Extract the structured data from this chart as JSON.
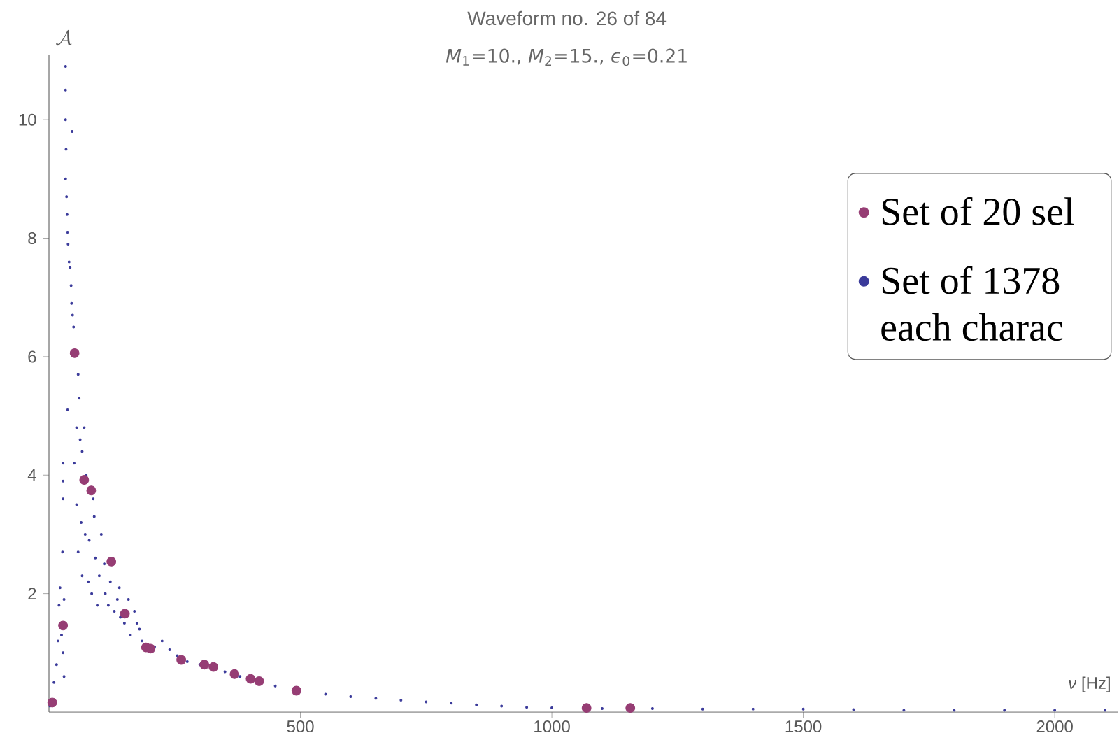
{
  "chart_data": {
    "type": "scatter",
    "title": "Waveform no. 26 of 84",
    "subtitle": "*M*$_{1}$=10., *M*$_{2}$=15., *ϵ*$_{0}$=0.21",
    "xlabel": "*ν* [Hz]",
    "ylabel": "\\mathcal{A}",
    "xlim": [
      0,
      2125
    ],
    "ylim": [
      0,
      11.1
    ],
    "xticks": [
      500,
      1000,
      1500,
      2000
    ],
    "yticks": [
      2,
      4,
      6,
      8,
      10
    ],
    "grid": false,
    "legend": "right",
    "marker": "circle",
    "series": [
      {
        "name": "Set of 20 sel",
        "color": "#963d74",
        "x": [
          6.5,
          28,
          51,
          70,
          84,
          124,
          151,
          193,
          202,
          263,
          309,
          327,
          369,
          401,
          418,
          492,
          1069,
          1156
        ],
        "values": [
          0.16,
          1.46,
          6.06,
          3.92,
          3.74,
          2.54,
          1.66,
          1.09,
          1.07,
          0.88,
          0.8,
          0.76,
          0.64,
          0.56,
          0.52,
          0.36,
          0.07,
          0.07
        ]
      },
      {
        "name": "Set of 1378 each charac",
        "color": "#3a3a9a",
        "x": [
          2,
          10,
          15,
          18,
          20,
          22,
          25,
          28,
          30,
          30,
          27,
          28,
          28,
          28,
          33,
          33,
          33,
          34,
          33,
          35,
          36,
          37,
          38,
          40,
          42,
          44,
          45,
          47,
          49,
          46,
          37,
          58,
          60,
          55,
          62,
          50,
          66,
          70,
          74,
          55,
          64,
          72,
          58,
          66,
          78,
          80,
          88,
          90,
          92,
          85,
          96,
          100,
          104,
          110,
          112,
          118,
          122,
          130,
          136,
          140,
          142,
          150,
          158,
          162,
          170,
          175,
          180,
          185,
          210,
          225,
          240,
          255,
          275,
          300,
          350,
          380,
          450,
          550,
          600,
          650,
          700,
          750,
          800,
          850,
          900,
          950,
          1000,
          1100,
          1200,
          1300,
          1400,
          1500,
          1600,
          1700,
          1800,
          1900,
          2000,
          2100
        ],
        "values": [
          0.1,
          0.5,
          0.8,
          1.2,
          1.8,
          2.1,
          1.3,
          1.0,
          0.6,
          1.9,
          2.7,
          4.2,
          3.9,
          3.6,
          10.9,
          10.5,
          10.0,
          9.5,
          9.0,
          8.7,
          8.4,
          8.1,
          7.9,
          7.6,
          7.5,
          7.2,
          6.9,
          6.7,
          6.5,
          9.8,
          5.1,
          5.7,
          5.3,
          4.8,
          4.6,
          4.2,
          4.4,
          4.8,
          4.0,
          3.5,
          3.2,
          3.0,
          2.7,
          2.3,
          2.2,
          2.9,
          3.6,
          3.3,
          2.6,
          2.0,
          1.8,
          2.3,
          3.0,
          2.5,
          2.0,
          1.8,
          2.2,
          1.7,
          1.9,
          2.1,
          1.6,
          1.5,
          1.9,
          1.3,
          1.7,
          1.5,
          1.4,
          1.2,
          1.1,
          1.2,
          1.05,
          0.95,
          0.85,
          0.8,
          0.68,
          0.6,
          0.44,
          0.3,
          0.26,
          0.23,
          0.2,
          0.17,
          0.15,
          0.12,
          0.1,
          0.08,
          0.07,
          0.06,
          0.06,
          0.05,
          0.05,
          0.05,
          0.04,
          0.03,
          0.03,
          0.03,
          0.03,
          0.03
        ]
      }
    ]
  }
}
